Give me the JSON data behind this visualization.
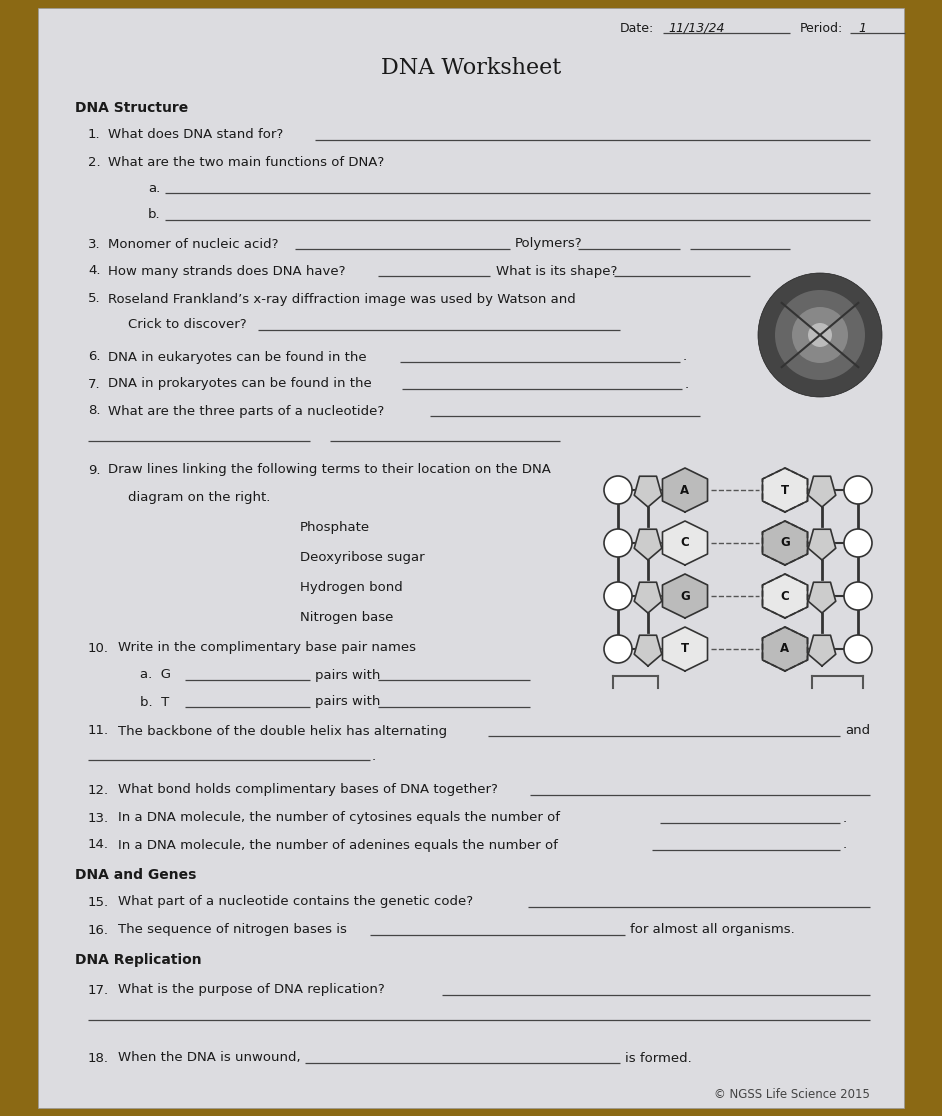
{
  "title": "DNA Worksheet",
  "bg_color": "#8B6914",
  "paper_color": "#dcdce0",
  "text_color": "#1a1a1a",
  "line_color": "#444444",
  "sections": {
    "structure_header": "DNA Structure",
    "genes_header": "DNA and Genes",
    "replication_header": "DNA Replication"
  },
  "copyright": "© NGSS Life Science 2015",
  "date_written": "11/13/24",
  "period_written": "1"
}
